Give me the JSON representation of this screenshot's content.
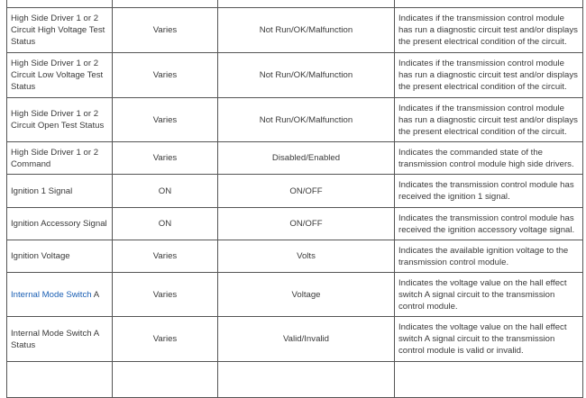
{
  "rows": [
    {
      "name": "High Side Driver 1 or 2 Circuit High Voltage Test Status",
      "value": "Varies",
      "units": "Not Run/OK/Malfunction",
      "description": "Indicates if the transmission control module has run a diagnostic circuit test and/or displays the present electrical condition of the circuit."
    },
    {
      "name": "High Side Driver 1 or 2 Circuit Low Voltage Test Status",
      "value": "Varies",
      "units": "Not Run/OK/Malfunction",
      "description": "Indicates if the transmission control module has run a diagnostic circuit test and/or displays the present electrical condition of the circuit."
    },
    {
      "name": "High Side Driver 1 or 2 Circuit Open Test Status",
      "value": "Varies",
      "units": "Not Run/OK/Malfunction",
      "description": "Indicates if the transmission control module has run a diagnostic circuit test and/or displays the present electrical condition of the circuit."
    },
    {
      "name": "High Side Driver 1 or 2 Command",
      "value": "Varies",
      "units": "Disabled/Enabled",
      "description": "Indicates the commanded state of the transmission control module high side drivers."
    },
    {
      "name": "Ignition 1 Signal",
      "value": "ON",
      "units": "ON/OFF",
      "description": "Indicates the transmission control module has received the ignition 1 signal."
    },
    {
      "name": "Ignition Accessory Signal",
      "value": "ON",
      "units": "ON/OFF",
      "description": "Indicates the transmission control module has received the ignition accessory voltage signal."
    },
    {
      "name": "Ignition Voltage",
      "value": "Varies",
      "units": "Volts",
      "description": "Indicates the available ignition voltage to the transmission control module."
    },
    {
      "name_link": "Internal Mode Switch",
      "name_suffix": " A",
      "value": "Varies",
      "units": "Voltage",
      "description": "Indicates the voltage value on the hall effect switch A signal circuit to the transmission control module."
    },
    {
      "name": "Internal Mode Switch A Status",
      "value": "Varies",
      "units": "Valid/Invalid",
      "description": "Indicates the voltage value on the hall effect switch A signal circuit to the transmission control module is valid or invalid."
    }
  ],
  "colors": {
    "link": "#1a5fb4",
    "border": "#555555",
    "text": "#3a3a3a"
  }
}
